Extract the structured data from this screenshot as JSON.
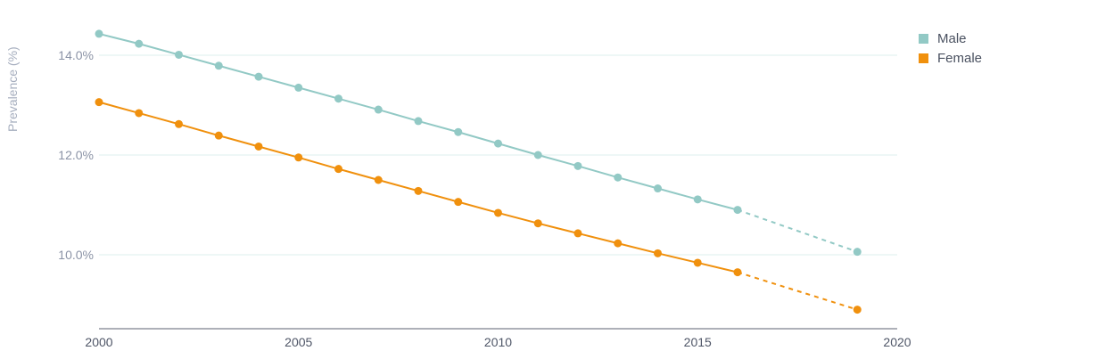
{
  "chart_data": {
    "type": "line",
    "ylabel": "Prevalence (%)",
    "xlabel": "",
    "xlim": [
      2000,
      2020
    ],
    "ylim": [
      8.5,
      14.8
    ],
    "x_ticks": [
      "2000",
      "2005",
      "2010",
      "2015",
      "2020"
    ],
    "y_ticks": [
      "10.0%",
      "12.0%",
      "14.0%"
    ],
    "grid": "horizontal",
    "legend_position": "top-right",
    "series": [
      {
        "name": "Male",
        "color": "#92c9c5",
        "x": [
          2000,
          2001,
          2002,
          2003,
          2004,
          2005,
          2006,
          2007,
          2008,
          2009,
          2010,
          2011,
          2012,
          2013,
          2014,
          2015,
          2016,
          2019
        ],
        "y": [
          14.43,
          14.23,
          14.01,
          13.79,
          13.57,
          13.35,
          13.13,
          12.91,
          12.68,
          12.46,
          12.23,
          12.0,
          11.78,
          11.55,
          11.33,
          11.11,
          10.9,
          10.06
        ],
        "projected_from_x": 2016
      },
      {
        "name": "Female",
        "color": "#f0900d",
        "x": [
          2000,
          2001,
          2002,
          2003,
          2004,
          2005,
          2006,
          2007,
          2008,
          2009,
          2010,
          2011,
          2012,
          2013,
          2014,
          2015,
          2016,
          2019
        ],
        "y": [
          13.06,
          12.84,
          12.62,
          12.39,
          12.17,
          11.95,
          11.72,
          11.5,
          11.28,
          11.06,
          10.84,
          10.63,
          10.43,
          10.23,
          10.03,
          9.84,
          9.65,
          8.9
        ],
        "projected_from_x": 2016
      }
    ]
  }
}
